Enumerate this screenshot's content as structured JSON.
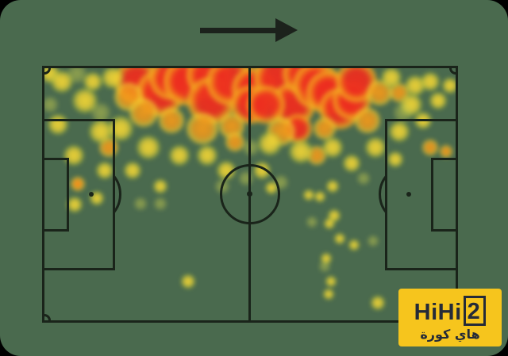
{
  "theme": {
    "background_color": "#4a6a4e",
    "frame_color": "#000000",
    "pitch_line_color": "#1a241a",
    "arrow_color": "#1c221c",
    "logo_bg_color": "#f6c51d",
    "logo_ink_color": "#252b38",
    "heat_red": "#ed2e1f",
    "heat_orange": "#f39a1b",
    "heat_yellow": "#f2d635",
    "heat_faint": "#cdd24e",
    "heat_edge": "#9ab83c"
  },
  "arrow": {
    "icon": "right-arrow",
    "meaning": "direction of play left to right"
  },
  "logo": {
    "latin_prefix": "HiHi",
    "latin_boxed": "2",
    "arabic": "هاي كورة"
  },
  "chart_data": {
    "type": "heatmap",
    "title": "",
    "subject": "football pitch action heatmap",
    "layout": "horizontal pitch with center circle, penalty areas, six-yard boxes, penalty spots and corner arcs; activity density concentrated along the top flank",
    "x_range": [
      0,
      100
    ],
    "y_range": [
      0,
      100
    ],
    "intensity_scale": [
      "0 faint yellow-green",
      "1 yellow",
      "2 orange",
      "3 red"
    ],
    "points": [
      [
        22.3,
        5.2,
        28,
        3
      ],
      [
        28.1,
        9.9,
        30,
        3
      ],
      [
        30.9,
        3.7,
        28,
        3
      ],
      [
        34.7,
        5.2,
        30,
        3
      ],
      [
        39.9,
        2.8,
        28,
        3
      ],
      [
        40.5,
        13.0,
        30,
        3
      ],
      [
        45.2,
        5.2,
        30,
        3
      ],
      [
        51.0,
        8.3,
        28,
        3
      ],
      [
        50.0,
        14.5,
        24,
        3
      ],
      [
        56.7,
        3.7,
        30,
        3
      ],
      [
        60.5,
        14.5,
        28,
        3
      ],
      [
        63.4,
        2.2,
        28,
        3
      ],
      [
        66.2,
        6.8,
        30,
        3
      ],
      [
        69.1,
        9.9,
        28,
        3
      ],
      [
        71.9,
        16.0,
        26,
        3
      ],
      [
        74.8,
        13.0,
        24,
        3
      ],
      [
        75.8,
        5.2,
        26,
        3
      ],
      [
        53.8,
        14.5,
        24,
        3
      ],
      [
        61.5,
        23.8,
        18,
        3
      ],
      [
        8.2,
        46.0,
        5,
        3
      ],
      [
        20.4,
        11.4,
        18,
        2
      ],
      [
        24.2,
        17.6,
        18,
        2
      ],
      [
        30.9,
        20.7,
        16,
        2
      ],
      [
        38.5,
        23.8,
        20,
        2
      ],
      [
        45.6,
        23.1,
        16,
        2
      ],
      [
        46.4,
        29.3,
        12,
        2
      ],
      [
        57.6,
        25.3,
        18,
        2
      ],
      [
        66.2,
        34.6,
        12,
        2
      ],
      [
        68.1,
        23.8,
        14,
        2
      ],
      [
        78.6,
        20.7,
        16,
        2
      ],
      [
        81.5,
        9.9,
        16,
        2
      ],
      [
        86.3,
        9.9,
        12,
        2
      ],
      [
        93.9,
        31.5,
        10,
        2
      ],
      [
        97.7,
        33.0,
        8,
        2
      ],
      [
        8.2,
        46.0,
        9,
        2
      ],
      [
        15.6,
        31.5,
        12,
        2
      ],
      [
        1.3,
        2.2,
        12,
        1
      ],
      [
        4.2,
        5.2,
        14,
        1
      ],
      [
        9.9,
        13.0,
        16,
        1
      ],
      [
        11.8,
        5.2,
        12,
        1
      ],
      [
        16.6,
        3.7,
        14,
        1
      ],
      [
        3.2,
        22.2,
        13,
        1
      ],
      [
        13.7,
        25.3,
        15,
        1
      ],
      [
        7.1,
        34.6,
        13,
        1
      ],
      [
        14.7,
        40.7,
        11,
        1
      ],
      [
        21.4,
        40.7,
        11,
        1
      ],
      [
        18.5,
        23.8,
        16,
        1
      ],
      [
        25.2,
        31.5,
        15,
        1
      ],
      [
        32.8,
        34.6,
        13,
        1
      ],
      [
        39.5,
        34.6,
        13,
        1
      ],
      [
        44.3,
        40.7,
        12,
        1
      ],
      [
        54.8,
        29.9,
        15,
        1
      ],
      [
        62.4,
        33.0,
        15,
        1
      ],
      [
        70.0,
        31.5,
        13,
        1
      ],
      [
        74.8,
        37.7,
        11,
        1
      ],
      [
        80.5,
        31.5,
        13,
        1
      ],
      [
        86.3,
        25.3,
        13,
        1
      ],
      [
        89.1,
        14.5,
        14,
        1
      ],
      [
        84.4,
        3.7,
        13,
        1
      ],
      [
        90.1,
        6.8,
        13,
        1
      ],
      [
        93.9,
        5.2,
        12,
        1
      ],
      [
        98.7,
        6.8,
        10,
        1
      ],
      [
        95.8,
        13.0,
        11,
        1
      ],
      [
        92.0,
        20.7,
        11,
        1
      ],
      [
        85.3,
        36.1,
        10,
        1
      ],
      [
        7.4,
        54.0,
        10,
        1
      ],
      [
        12.8,
        51.5,
        9,
        1
      ],
      [
        28.1,
        46.9,
        9,
        1
      ],
      [
        52.9,
        40.7,
        11,
        1
      ],
      [
        55.3,
        47.5,
        8,
        1
      ],
      [
        70.0,
        46.9,
        8,
        1
      ],
      [
        64.3,
        50.3,
        7,
        1
      ],
      [
        67.0,
        50.9,
        7,
        1
      ],
      [
        70.4,
        58.6,
        8,
        1
      ],
      [
        69.3,
        61.7,
        7,
        1
      ],
      [
        71.9,
        67.6,
        7,
        1
      ],
      [
        75.2,
        70.1,
        7,
        1
      ],
      [
        68.5,
        75.6,
        7,
        1
      ],
      [
        69.7,
        84.6,
        7,
        1
      ],
      [
        69.1,
        89.5,
        7,
        1
      ],
      [
        81.1,
        93.2,
        9,
        1
      ],
      [
        34.9,
        84.6,
        9,
        1
      ],
      [
        8.0,
        2.2,
        12,
        0
      ],
      [
        13.7,
        17.6,
        12,
        0
      ],
      [
        1.3,
        14.5,
        10,
        0
      ],
      [
        23.3,
        53.7,
        8,
        0
      ],
      [
        28.1,
        53.7,
        8,
        0
      ],
      [
        57.6,
        45.4,
        9,
        0
      ],
      [
        65.1,
        61.1,
        7,
        0
      ],
      [
        79.9,
        68.5,
        7,
        0
      ],
      [
        68.1,
        78.7,
        7,
        0
      ],
      [
        77.7,
        43.8,
        8,
        0
      ],
      [
        87.2,
        17.6,
        12,
        0
      ],
      [
        43.3,
        46.9,
        9,
        0
      ],
      [
        50.2,
        31.5,
        10,
        0
      ],
      [
        49.0,
        43.8,
        9,
        0
      ]
    ]
  }
}
